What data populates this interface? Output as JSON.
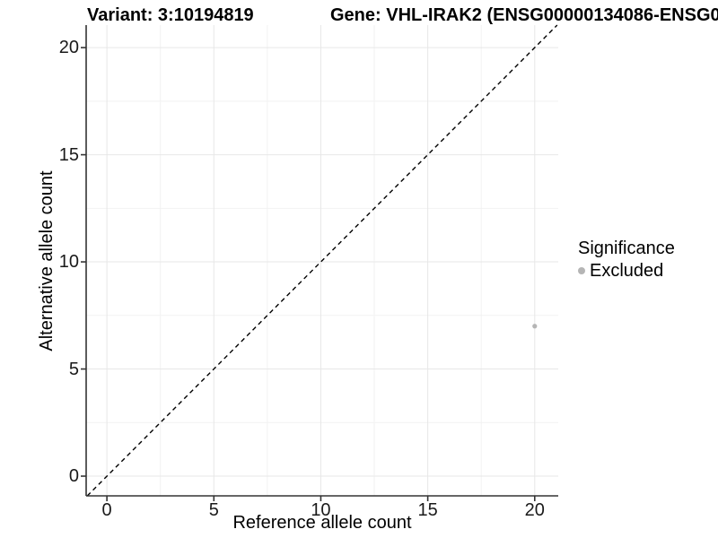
{
  "colors": {
    "background": "#ffffff",
    "axis": "#333333",
    "grid_major": "#e7e7e7",
    "grid_minor": "#f2f2f2",
    "tick_text": "#1a1a1a",
    "title_text": "#000000",
    "point": "#b5b5b5",
    "identity_line": "#000000"
  },
  "chart_data": {
    "type": "scatter",
    "title_left": "Variant: 3:10194819",
    "title_right": "Gene: VHL-IRAK2 (ENSG00000134086-ENSG0",
    "xlabel": "Reference allele count",
    "ylabel": "Alternative allele count",
    "xlim": [
      -0.97,
      21.1
    ],
    "ylim": [
      -0.92,
      21.05
    ],
    "xticks": [
      0,
      5,
      10,
      15,
      20
    ],
    "yticks": [
      0,
      5,
      10,
      15,
      20
    ],
    "xminor": [
      2.5,
      7.5,
      12.5,
      17.5
    ],
    "yminor": [
      2.5,
      7.5,
      12.5,
      17.5
    ],
    "grid": true,
    "identity_line": {
      "style": "dashed",
      "equation": "y = x",
      "color": "#000000"
    },
    "series": [
      {
        "name": "Excluded",
        "color": "#b5b5b5",
        "points": [
          {
            "x": 20,
            "y": 7
          }
        ]
      }
    ],
    "legend": {
      "title": "Significance",
      "position": "right",
      "items": [
        {
          "label": "Excluded",
          "color": "#b5b5b5"
        }
      ]
    }
  }
}
